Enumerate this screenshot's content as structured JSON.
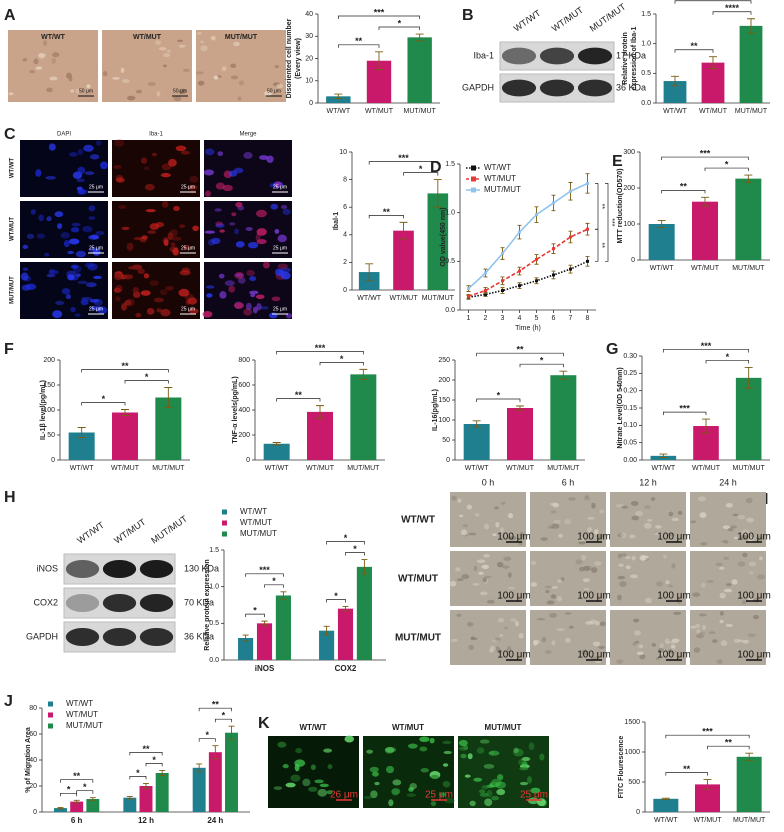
{
  "panel_labels": [
    "A",
    "B",
    "C",
    "D",
    "E",
    "F",
    "G",
    "H",
    "I",
    "J",
    "K"
  ],
  "images": {
    "A": {
      "labels": [
        "WT/WT",
        "WT/MUT",
        "MUT/MUT"
      ],
      "scale": [
        "50 μm",
        "50 μm",
        "50 μm"
      ]
    },
    "B": {
      "lanes": [
        "WT/WT",
        "WT/MUT",
        "MUT/MUT"
      ],
      "bands": [
        {
          "name": "Iba-1",
          "size": "17 KDa"
        },
        {
          "name": "GAPDH",
          "size": "36 KDa"
        }
      ]
    },
    "C": {
      "columns": [
        "DAPI",
        "Iba-1",
        "Merge"
      ],
      "rows": [
        "WT/WT",
        "WT/MUT",
        "MUT/MUT"
      ],
      "scale": "25 μm"
    },
    "H": {
      "lanes": [
        "WT/WT",
        "WT/MUT",
        "MUT/MUT"
      ],
      "bands": [
        {
          "name": "iNOS",
          "size": "130 KDa"
        },
        {
          "name": "COX2",
          "size": "70 KDa"
        },
        {
          "name": "GAPDH",
          "size": "36 KDa"
        }
      ]
    },
    "I": {
      "columns": [
        "0 h",
        "6 h",
        "12 h",
        "24 h"
      ],
      "rows": [
        "WT/WT",
        "WT/MUT",
        "MUT/MUT"
      ],
      "scale": "100 μm"
    },
    "K": {
      "labels": [
        "WT/WT",
        "WT/MUT",
        "MUT/MUT"
      ],
      "scale": [
        "26 μm",
        "25 μm",
        "25 μm"
      ]
    }
  },
  "chart_data": [
    {
      "type": "bar",
      "ylabel": [
        "Disoriented cell number",
        "(Every view)"
      ],
      "categories": [
        "WT/WT",
        "WT/MUT",
        "MUT/MUT"
      ],
      "values": [
        3,
        19,
        29.5
      ],
      "errors": [
        1,
        4,
        1.5
      ],
      "colors": [
        "#1f7f8f",
        "#c8196a",
        "#1f8a4c"
      ],
      "ylim": [
        0,
        40
      ],
      "yticks": [
        0,
        10,
        20,
        30,
        40
      ],
      "significance": [
        "**",
        "*",
        "***"
      ]
    },
    {
      "type": "bar",
      "ylabel": [
        "Relative protein",
        "expression of Iba-1"
      ],
      "categories": [
        "WT/WT",
        "WT/MUT",
        "MUT/MUT"
      ],
      "values": [
        0.37,
        0.68,
        1.3
      ],
      "errors": [
        0.08,
        0.1,
        0.12
      ],
      "colors": [
        "#1f7f8f",
        "#c8196a",
        "#1f8a4c"
      ],
      "ylim": [
        0,
        1.5
      ],
      "yticks": [
        {
          "value": 0,
          "label": "0.0"
        },
        0.5,
        {
          "value": 1,
          "label": "1.0"
        },
        1.5
      ],
      "significance": [
        "**",
        "****",
        "****"
      ]
    },
    {
      "type": "bar",
      "ylabel": [
        "Ibal-1"
      ],
      "categories": [
        "WT/WT",
        "WT/MUT",
        "MUT/MUT"
      ],
      "values": [
        1.3,
        4.3,
        7
      ],
      "errors": [
        0.6,
        0.6,
        1
      ],
      "colors": [
        "#1f7f8f",
        "#c8196a",
        "#1f8a4c"
      ],
      "ylim": [
        0,
        10
      ],
      "yticks": [
        0,
        2,
        4,
        6,
        8,
        10
      ],
      "significance": [
        "**",
        "*",
        "***"
      ]
    },
    {
      "type": "line",
      "xlabel": "Time (h)",
      "ylabel": [
        "OD value(450 nm)"
      ],
      "x": [
        1,
        2,
        3,
        4,
        5,
        6,
        7,
        8
      ],
      "xlim": [
        0.5,
        8.5
      ],
      "xticks": [
        1,
        2,
        3,
        4,
        5,
        6,
        7,
        8
      ],
      "ylim": [
        0,
        1.5
      ],
      "yticks": [
        {
          "value": 0,
          "label": "0.0"
        },
        0.5,
        {
          "value": 1,
          "label": "1.0"
        },
        1.5
      ],
      "legend": "upper left",
      "series": [
        {
          "name": "WT/WT",
          "color": "#111111",
          "linestyle": "dotted",
          "values": [
            0.13,
            0.16,
            0.2,
            0.25,
            0.3,
            0.36,
            0.42,
            0.5
          ],
          "errors": [
            0.02,
            0.02,
            0.03,
            0.03,
            0.03,
            0.04,
            0.04,
            0.05
          ]
        },
        {
          "name": "WT/MUT",
          "color": "#e53935",
          "linestyle": "dashed",
          "values": [
            0.14,
            0.2,
            0.3,
            0.4,
            0.52,
            0.63,
            0.75,
            0.83
          ],
          "errors": [
            0.02,
            0.03,
            0.04,
            0.04,
            0.05,
            0.05,
            0.06,
            0.06
          ]
        },
        {
          "name": "MUT/MUT",
          "color": "#90c4ee",
          "linestyle": "solid",
          "values": [
            0.22,
            0.38,
            0.58,
            0.8,
            0.98,
            1.1,
            1.22,
            1.3
          ],
          "errors": [
            0.03,
            0.04,
            0.06,
            0.07,
            0.08,
            0.08,
            0.09,
            0.1
          ]
        }
      ],
      "significance": [
        "**",
        "**",
        "***"
      ]
    },
    {
      "type": "bar",
      "ylabel": [
        "MTT reduction(OD570)"
      ],
      "categories": [
        "WT/WT",
        "WT/MUT",
        "MUT/MUT"
      ],
      "values": [
        100,
        162,
        226
      ],
      "errors": [
        10,
        12,
        10
      ],
      "colors": [
        "#1f7f8f",
        "#c8196a",
        "#1f8a4c"
      ],
      "ylim": [
        0,
        300
      ],
      "yticks": [
        0,
        100,
        200,
        300
      ],
      "significance": [
        "**",
        "*",
        "***"
      ]
    },
    {
      "type": "bar",
      "ylabel": [
        "IL-1β level(pg/mL)"
      ],
      "categories": [
        "WT/WT",
        "WT/MUT",
        "MUT/MUT"
      ],
      "values": [
        55,
        95,
        125
      ],
      "errors": [
        10,
        6,
        20
      ],
      "colors": [
        "#1f7f8f",
        "#c8196a",
        "#1f8a4c"
      ],
      "ylim": [
        0,
        200
      ],
      "yticks": [
        0,
        50,
        100,
        150,
        200
      ],
      "significance": [
        "*",
        "*",
        "**"
      ]
    },
    {
      "type": "bar",
      "ylabel": [
        "TNF-α levels(pg/mL)"
      ],
      "categories": [
        "WT/WT",
        "WT/MUT",
        "MUT/MUT"
      ],
      "values": [
        130,
        385,
        685
      ],
      "errors": [
        10,
        50,
        40
      ],
      "colors": [
        "#1f7f8f",
        "#c8196a",
        "#1f8a4c"
      ],
      "ylim": [
        0,
        800
      ],
      "yticks": [
        0,
        200,
        400,
        600,
        800
      ],
      "significance": [
        "**",
        "*",
        "***"
      ]
    },
    {
      "type": "bar",
      "ylabel": [
        "IL-16(pg/mL)"
      ],
      "categories": [
        "WT/WT",
        "WT/MUT",
        "MUT/MUT"
      ],
      "values": [
        90,
        130,
        212
      ],
      "errors": [
        8,
        5,
        10
      ],
      "colors": [
        "#1f7f8f",
        "#c8196a",
        "#1f8a4c"
      ],
      "ylim": [
        0,
        250
      ],
      "yticks": [
        0,
        50,
        100,
        150,
        200,
        250
      ],
      "significance": [
        "*",
        "*",
        "**"
      ]
    },
    {
      "type": "bar",
      "ylabel": [
        "Nitrate Level(OD 540nm)"
      ],
      "categories": [
        "WT/WT",
        "WT/MUT",
        "MUT/MUT"
      ],
      "values": [
        0.012,
        0.098,
        0.237
      ],
      "errors": [
        0.005,
        0.02,
        0.03
      ],
      "colors": [
        "#1f7f8f",
        "#c8196a",
        "#1f8a4c"
      ],
      "ylim": [
        0,
        0.3
      ],
      "yticks": [
        {
          "value": 0,
          "label": "0.00"
        },
        0.05,
        {
          "value": 0.1,
          "label": "0.10"
        },
        0.15,
        {
          "value": 0.2,
          "label": "0.20"
        },
        0.25,
        {
          "value": 0.3,
          "label": "0.30"
        }
      ],
      "significance": [
        "***",
        "*",
        "***"
      ]
    },
    {
      "type": "grouped_bar",
      "ylabel": [
        "Relative protein expression"
      ],
      "categories": [
        "iNOS",
        "COX2"
      ],
      "legend": "upper left",
      "ylim": [
        0,
        1.5
      ],
      "yticks": [
        {
          "value": 0,
          "label": "0.0"
        },
        0.5,
        {
          "value": 1,
          "label": "1.0"
        },
        1.5
      ],
      "series": [
        {
          "name": "WT/WT",
          "color": "#1f7f8f",
          "values": [
            0.3,
            0.4
          ],
          "errors": [
            0.04,
            0.06
          ]
        },
        {
          "name": "WT/MUT",
          "color": "#c8196a",
          "values": [
            0.5,
            0.7
          ],
          "errors": [
            0.03,
            0.03
          ]
        },
        {
          "name": "MUT/MUT",
          "color": "#1f8a4c",
          "values": [
            0.88,
            1.27
          ],
          "errors": [
            0.05,
            0.1
          ]
        }
      ],
      "significance": [
        [
          "*",
          "*",
          "***"
        ],
        [
          "*",
          "*",
          "*"
        ]
      ]
    },
    {
      "type": "grouped_bar",
      "ylabel": [
        "% of Migration Area"
      ],
      "categories": [
        "6 h",
        "12 h",
        "24 h"
      ],
      "legend": "upper left",
      "ylim": [
        0,
        80
      ],
      "yticks": [
        0,
        20,
        40,
        60,
        80
      ],
      "series": [
        {
          "name": "WT/WT",
          "color": "#1f7f8f",
          "values": [
            3,
            11,
            34
          ],
          "errors": [
            0.5,
            1,
            3
          ]
        },
        {
          "name": "WT/MUT",
          "color": "#c8196a",
          "values": [
            8,
            20,
            46
          ],
          "errors": [
            1,
            2,
            5
          ]
        },
        {
          "name": "MUT/MUT",
          "color": "#1f8a4c",
          "values": [
            10,
            30,
            61
          ],
          "errors": [
            1,
            2,
            5
          ]
        }
      ],
      "significance": [
        [
          "*",
          "*",
          "**"
        ],
        [
          "*",
          "*",
          "**"
        ],
        [
          "*",
          "*",
          "**"
        ]
      ]
    },
    {
      "type": "bar",
      "ylabel": [
        "FITC Flourescence"
      ],
      "categories": [
        "WT/WT",
        "WT/MUT",
        "MUT/MUT"
      ],
      "values": [
        220,
        460,
        920
      ],
      "errors": [
        10,
        80,
        60
      ],
      "colors": [
        "#1f7f8f",
        "#c8196a",
        "#1f8a4c"
      ],
      "ylim": [
        0,
        1500
      ],
      "yticks": [
        0,
        500,
        1000,
        1500
      ],
      "significance": [
        "**",
        "**",
        "***"
      ]
    }
  ]
}
